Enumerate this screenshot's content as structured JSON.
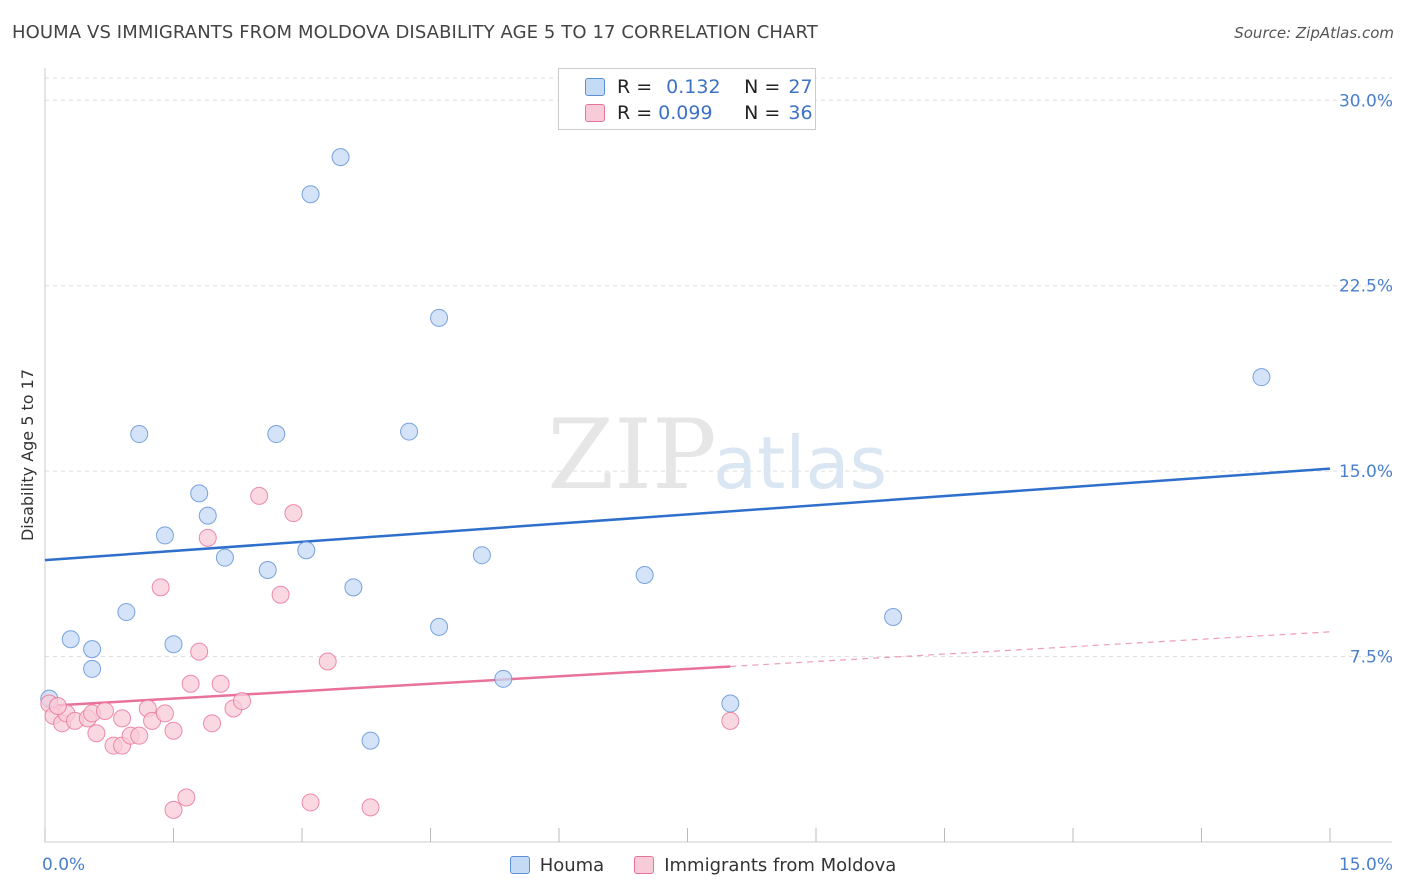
{
  "title": "HOUMA VS IMMIGRANTS FROM MOLDOVA DISABILITY AGE 5 TO 17 CORRELATION CHART",
  "source": "Source: ZipAtlas.com",
  "watermark": {
    "zip": "ZIP",
    "atlas": "atlas"
  },
  "legend": {
    "rows": [
      {
        "r_label": "R =",
        "r_value": "0.132",
        "n_label": "N =",
        "n_value": "27"
      },
      {
        "r_label": "R =",
        "r_value": "0.099",
        "n_label": "N =",
        "n_value": "36"
      }
    ]
  },
  "colors": {
    "houma": "#5b8fd6",
    "houma_fill": "#c5daf5",
    "moldova": "#e8729a",
    "moldova_fill": "#f8cbd8",
    "tick": "#4a7fcb",
    "grid": "#dddddd"
  },
  "chart_data": {
    "type": "scatter",
    "title": "HOUMA VS IMMIGRANTS FROM MOLDOVA DISABILITY AGE 5 TO 17 CORRELATION CHART",
    "xlabel": "",
    "ylabel": "Disability Age 5 to 17",
    "xlim": [
      0,
      15
    ],
    "ylim": [
      0,
      30.9
    ],
    "x_tick_labels": [
      {
        "value": 0,
        "label": "0.0%"
      },
      {
        "value": 15,
        "label": "15.0%"
      }
    ],
    "x_minor_ticks": [
      0,
      1.5,
      3,
      4.5,
      6,
      7.5,
      9,
      10.5,
      12,
      13.5,
      15
    ],
    "y_ticks": [
      {
        "value": 7.5,
        "label": "7.5%"
      },
      {
        "value": 15,
        "label": "15.0%"
      },
      {
        "value": 22.5,
        "label": "22.5%"
      },
      {
        "value": 30,
        "label": "30.0%"
      }
    ],
    "grid": true,
    "legend_position": "top-center",
    "series": [
      {
        "name": "Houma",
        "color": "#5b8fd6",
        "points": [
          [
            0.05,
            5.8
          ],
          [
            0.3,
            8.2
          ],
          [
            0.55,
            7.8
          ],
          [
            0.55,
            7.0
          ],
          [
            0.95,
            9.3
          ],
          [
            1.1,
            16.5
          ],
          [
            1.4,
            12.4
          ],
          [
            1.5,
            8.0
          ],
          [
            1.8,
            14.1
          ],
          [
            1.9,
            13.2
          ],
          [
            2.1,
            11.5
          ],
          [
            2.6,
            11.0
          ],
          [
            2.7,
            16.5
          ],
          [
            3.1,
            26.2
          ],
          [
            3.05,
            11.8
          ],
          [
            3.45,
            27.7
          ],
          [
            3.6,
            10.3
          ],
          [
            3.8,
            4.1
          ],
          [
            4.25,
            16.6
          ],
          [
            4.6,
            21.2
          ],
          [
            4.6,
            8.7
          ],
          [
            5.1,
            11.6
          ],
          [
            5.35,
            6.6
          ],
          [
            7.0,
            10.8
          ],
          [
            8.0,
            5.6
          ],
          [
            9.9,
            9.1
          ],
          [
            14.2,
            18.8
          ]
        ],
        "trend": {
          "x": [
            0,
            15
          ],
          "y": [
            11.4,
            15.1
          ]
        }
      },
      {
        "name": "Immigrants from Moldova",
        "color": "#e8729a",
        "points": [
          [
            0.05,
            5.6
          ],
          [
            0.1,
            5.1
          ],
          [
            0.2,
            4.8
          ],
          [
            0.25,
            5.2
          ],
          [
            0.35,
            4.9
          ],
          [
            0.5,
            5.0
          ],
          [
            0.55,
            5.2
          ],
          [
            0.6,
            4.4
          ],
          [
            0.7,
            5.3
          ],
          [
            0.8,
            3.9
          ],
          [
            0.9,
            5.0
          ],
          [
            0.9,
            3.9
          ],
          [
            1.0,
            4.3
          ],
          [
            1.1,
            4.3
          ],
          [
            1.2,
            5.4
          ],
          [
            1.25,
            4.9
          ],
          [
            1.35,
            10.3
          ],
          [
            1.4,
            5.2
          ],
          [
            1.5,
            1.3
          ],
          [
            1.5,
            4.5
          ],
          [
            1.65,
            1.8
          ],
          [
            1.7,
            6.4
          ],
          [
            1.8,
            7.7
          ],
          [
            1.9,
            12.3
          ],
          [
            1.95,
            4.8
          ],
          [
            2.05,
            6.4
          ],
          [
            2.2,
            5.4
          ],
          [
            2.3,
            5.7
          ],
          [
            2.5,
            14.0
          ],
          [
            2.75,
            10.0
          ],
          [
            2.9,
            13.3
          ],
          [
            3.1,
            1.6
          ],
          [
            3.3,
            7.3
          ],
          [
            3.8,
            1.4
          ],
          [
            8.0,
            4.9
          ],
          [
            0.15,
            5.5
          ]
        ],
        "trend": {
          "x": [
            0,
            8.0
          ],
          "y": [
            5.5,
            7.1
          ]
        },
        "trend_extension": {
          "x": [
            8.0,
            15
          ],
          "y": [
            7.1,
            8.5
          ]
        }
      }
    ]
  },
  "bottom_legend": [
    {
      "label": "Houma"
    },
    {
      "label": "Immigrants from Moldova"
    }
  ]
}
